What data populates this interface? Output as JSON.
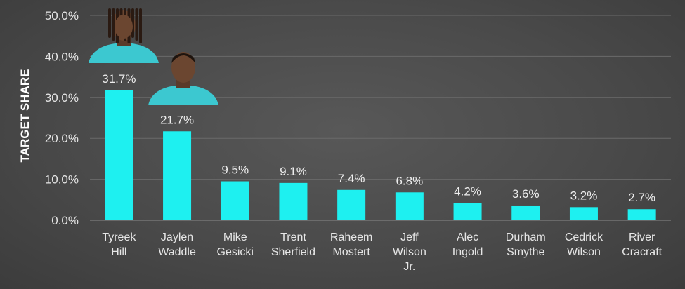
{
  "chart_data": {
    "type": "bar",
    "ylabel": "TARGET SHARE",
    "ylim": [
      0,
      50
    ],
    "yticks": [
      "0.0%",
      "10.0%",
      "20.0%",
      "30.0%",
      "40.0%",
      "50.0%"
    ],
    "grid": true,
    "categories": [
      [
        "Tyreek",
        "Hill"
      ],
      [
        "Jaylen",
        "Waddle"
      ],
      [
        "Mike",
        "Gesicki"
      ],
      [
        "Trent",
        "Sherfield"
      ],
      [
        "Raheem",
        "Mostert"
      ],
      [
        "Jeff",
        "Wilson",
        "Jr."
      ],
      [
        "Alec",
        "Ingold"
      ],
      [
        "Durham",
        "Smythe"
      ],
      [
        "Cedrick",
        "Wilson"
      ],
      [
        "River",
        "Cracraft"
      ]
    ],
    "values": [
      31.7,
      21.7,
      9.5,
      9.1,
      7.4,
      6.8,
      4.2,
      3.6,
      3.2,
      2.7
    ],
    "data_labels": [
      "31.7%",
      "21.7%",
      "9.5%",
      "9.1%",
      "7.4%",
      "6.8%",
      "4.2%",
      "3.6%",
      "3.2%",
      "2.7%"
    ],
    "bar_color": "#1ef0f0",
    "jersey_color": "#3cc8d0",
    "player_photos": [
      "Tyreek Hill",
      "Jaylen Waddle"
    ]
  }
}
